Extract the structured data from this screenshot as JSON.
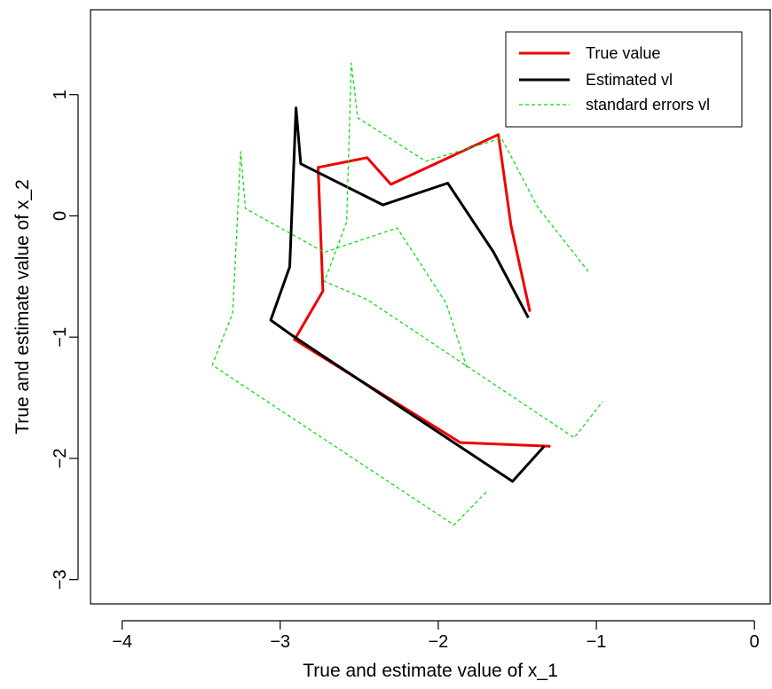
{
  "chart_data": {
    "type": "line",
    "xlabel": "True and estimate value of x_1",
    "ylabel": "True and estimate value of x_2",
    "xlim": [
      -4.2,
      0.1
    ],
    "ylim": [
      -3.2,
      1.7
    ],
    "xticks": [
      -4,
      -3,
      -2,
      -1,
      0
    ],
    "yticks": [
      -3,
      -2,
      -1,
      0,
      1
    ],
    "xtick_labels": [
      "−4",
      "−3",
      "−2",
      "−1",
      "0"
    ],
    "ytick_labels": [
      "−3",
      "−2",
      "−1",
      "0",
      "1"
    ],
    "grid": false,
    "legend_position": "top-right",
    "series": [
      {
        "name": "True value",
        "color": "#ee0000",
        "style": "solid",
        "points": [
          [
            -1.42,
            -0.79
          ],
          [
            -1.54,
            -0.08
          ],
          [
            -1.62,
            0.67
          ],
          [
            -2.3,
            0.26
          ],
          [
            -2.45,
            0.48
          ],
          [
            -2.76,
            0.4
          ],
          [
            -2.73,
            -0.62
          ],
          [
            -2.9,
            -1.0
          ],
          [
            -2.91,
            -1.02
          ],
          [
            -1.86,
            -1.87
          ],
          [
            -1.29,
            -1.9
          ]
        ]
      },
      {
        "name": "Estimated vl",
        "color": "#000000",
        "style": "solid",
        "points": [
          [
            -1.43,
            -0.84
          ],
          [
            -1.65,
            -0.3
          ],
          [
            -1.94,
            0.27
          ],
          [
            -2.35,
            0.09
          ],
          [
            -2.87,
            0.43
          ],
          [
            -2.9,
            0.89
          ],
          [
            -2.94,
            -0.42
          ],
          [
            -3.06,
            -0.86
          ],
          [
            -2.92,
            -0.99
          ],
          [
            -1.53,
            -2.19
          ],
          [
            -1.33,
            -1.9
          ]
        ]
      },
      {
        "name": "standard errors vl",
        "color": "#00dd00",
        "style": "dashed",
        "points": [
          [
            -1.05,
            -0.46
          ],
          [
            -1.37,
            0.07
          ],
          [
            -1.6,
            0.64
          ],
          [
            -2.08,
            0.45
          ],
          [
            -2.51,
            0.81
          ],
          [
            -2.55,
            1.26
          ],
          [
            -2.58,
            -0.05
          ],
          [
            -2.72,
            -0.54
          ],
          [
            -2.45,
            -0.69
          ],
          [
            -1.14,
            -1.83
          ],
          [
            -0.96,
            -1.53
          ]
        ]
      },
      {
        "name": "",
        "color": "#00dd00",
        "style": "dashed",
        "points": [
          [
            -1.82,
            -1.25
          ],
          [
            -1.95,
            -0.72
          ],
          [
            -2.26,
            -0.1
          ],
          [
            -2.72,
            -0.3
          ],
          [
            -3.22,
            0.06
          ],
          [
            -3.25,
            0.53
          ],
          [
            -3.3,
            -0.8
          ],
          [
            -3.43,
            -1.23
          ],
          [
            -3.28,
            -1.36
          ],
          [
            -1.9,
            -2.55
          ],
          [
            -1.69,
            -2.27
          ]
        ]
      }
    ]
  }
}
